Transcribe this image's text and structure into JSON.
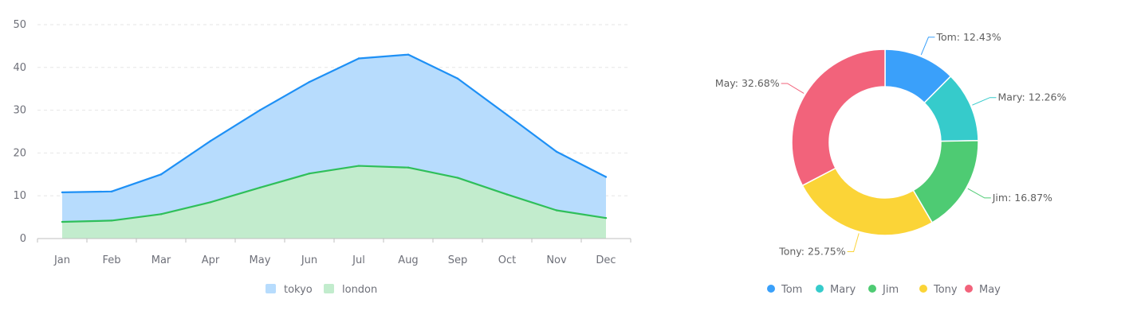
{
  "chart_data": [
    {
      "type": "area",
      "categories": [
        "Jan",
        "Feb",
        "Mar",
        "Apr",
        "May",
        "Jun",
        "Jul",
        "Aug",
        "Sep",
        "Oct",
        "Nov",
        "Dec"
      ],
      "series": [
        {
          "name": "tokyo",
          "values": [
            10.8,
            11.0,
            15.0,
            22.8,
            30.0,
            36.6,
            42.1,
            43.0,
            37.4,
            28.9,
            20.3,
            14.4
          ],
          "line_color": "#1e90f5",
          "fill_color": "#b7dcfd"
        },
        {
          "name": "london",
          "values": [
            3.9,
            4.2,
            5.7,
            8.5,
            11.9,
            15.2,
            17.0,
            16.6,
            14.2,
            10.3,
            6.6,
            4.8
          ],
          "line_color": "#2fbf5a",
          "fill_color": "#c2eccd"
        }
      ],
      "ylim": [
        0,
        50
      ],
      "yticks": [
        0,
        10,
        20,
        30,
        40,
        50
      ],
      "grid": true,
      "legend_position": "bottom"
    },
    {
      "type": "pie",
      "style": "donut",
      "slices": [
        {
          "name": "Tom",
          "value": 12.43,
          "label": "Tom: 12.43%",
          "color": "#3aa0fa"
        },
        {
          "name": "Mary",
          "value": 12.26,
          "label": "Mary: 12.26%",
          "color": "#36cbcb"
        },
        {
          "name": "Jim",
          "value": 16.87,
          "label": "Jim: 16.87%",
          "color": "#4ecb73"
        },
        {
          "name": "Tony",
          "value": 25.75,
          "label": "Tony: 25.75%",
          "color": "#fbd437"
        },
        {
          "name": "May",
          "value": 32.68,
          "label": "May: 32.68%",
          "color": "#f2637b"
        }
      ],
      "legend_position": "bottom"
    }
  ]
}
